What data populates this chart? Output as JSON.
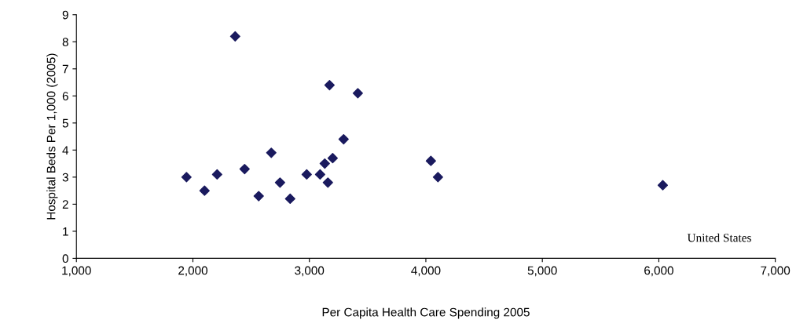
{
  "chart_data": {
    "type": "scatter",
    "xlabel": "Per Capita Health Care Spending 2005",
    "ylabel": "Hospital Beds Per 1,000 (2005)",
    "x": [
      1945,
      2100,
      2208,
      2363,
      2444,
      2565,
      2673,
      2748,
      2835,
      2977,
      3092,
      3132,
      3173,
      3159,
      3200,
      3294,
      3416,
      4043,
      4104,
      6034
    ],
    "values": [
      3.0,
      2.5,
      3.1,
      8.2,
      3.3,
      2.3,
      3.9,
      2.8,
      2.2,
      3.1,
      3.1,
      3.5,
      6.4,
      2.8,
      3.7,
      4.4,
      6.1,
      3.6,
      3.0,
      2.7
    ],
    "color": "#1a1a5e",
    "marker": "diamond",
    "grid": false,
    "legend": false,
    "xlim": [
      1000,
      7000
    ],
    "xticks": [
      {
        "value": 1000,
        "label": "1,000"
      },
      {
        "value": 2000,
        "label": "2,000"
      },
      {
        "value": 3000,
        "label": "3,000"
      },
      {
        "value": 4000,
        "label": "4,000"
      },
      {
        "value": 5000,
        "label": "5,000"
      },
      {
        "value": 6000,
        "label": "6,000"
      },
      {
        "value": 7000,
        "label": "7,000"
      }
    ],
    "ylim": [
      0,
      9
    ],
    "yticks": [
      0,
      1,
      2,
      3,
      4,
      5,
      6,
      7,
      8,
      9
    ],
    "annotations": [
      "United States"
    ]
  }
}
